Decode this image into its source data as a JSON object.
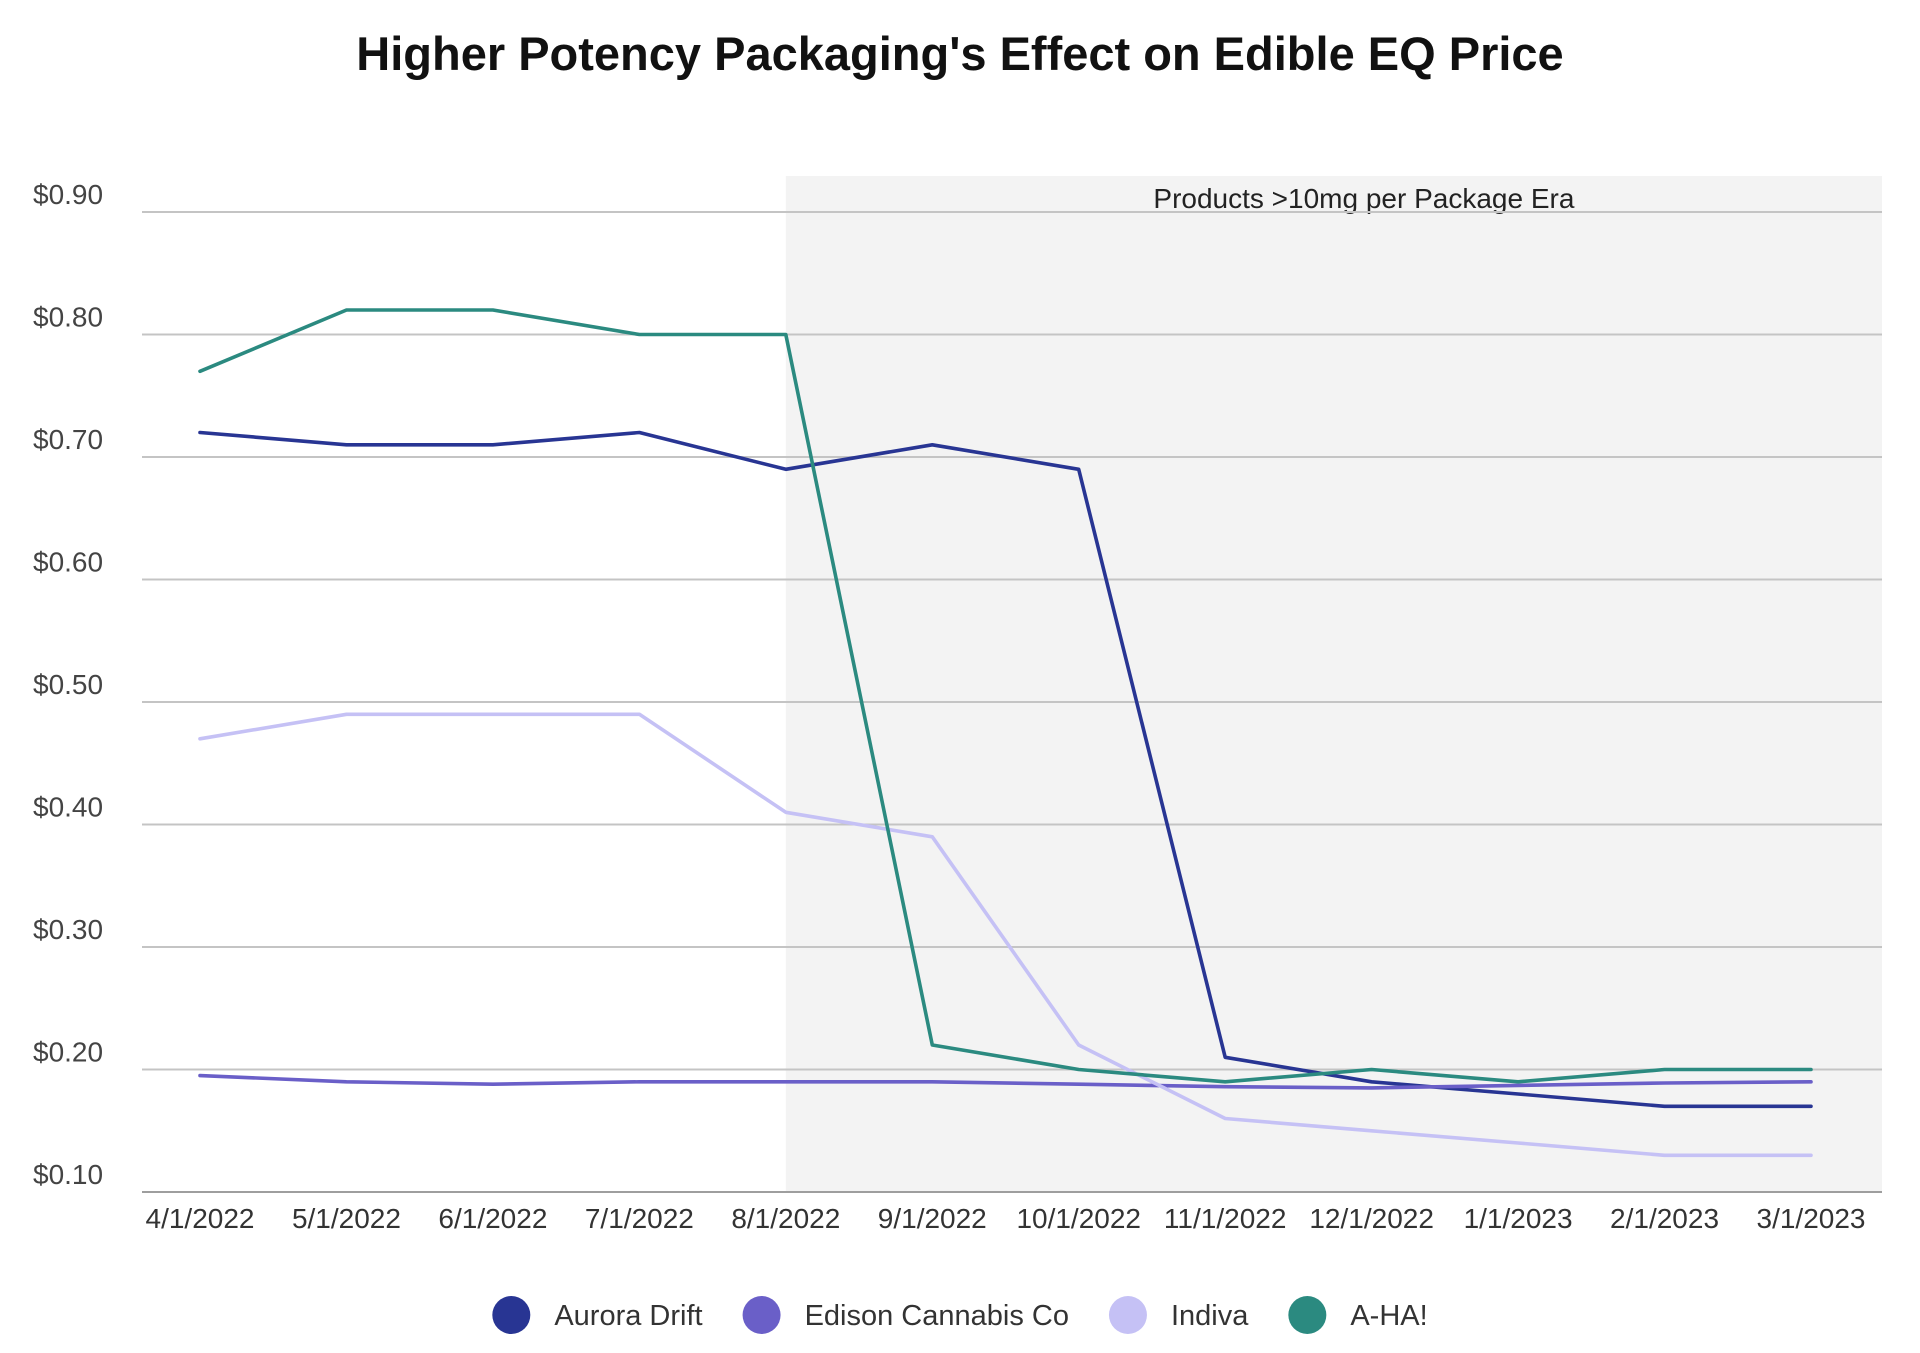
{
  "chart_data": {
    "type": "line",
    "title": "Higher Potency Packaging's Effect on Edible EQ Price",
    "xlabel": "",
    "ylabel": "",
    "categories": [
      "4/1/2022",
      "5/1/2022",
      "6/1/2022",
      "7/1/2022",
      "8/1/2022",
      "9/1/2022",
      "10/1/2022",
      "11/1/2022",
      "12/1/2022",
      "1/1/2023",
      "2/1/2023",
      "3/1/2023"
    ],
    "ylim": [
      0.1,
      0.9
    ],
    "yticks": [
      {
        "value": 0.9,
        "label": "$0.90"
      },
      {
        "value": 0.8,
        "label": "$0.80"
      },
      {
        "value": 0.7,
        "label": "$0.70"
      },
      {
        "value": 0.6,
        "label": "$0.60"
      },
      {
        "value": 0.5,
        "label": "$0.50"
      },
      {
        "value": 0.4,
        "label": "$0.40"
      },
      {
        "value": 0.3,
        "label": "$0.30"
      },
      {
        "value": 0.2,
        "label": "$0.20"
      },
      {
        "value": 0.1,
        "label": "$0.10"
      }
    ],
    "grid": true,
    "legend_position": "bottom",
    "shaded_region": {
      "label": "Products >10mg per Package Era",
      "from_category": "8/1/2022",
      "to_category": "3/1/2023",
      "color": "#f3f3f3"
    },
    "series": [
      {
        "name": "Aurora Drift",
        "color": "#283593",
        "values": [
          0.72,
          0.71,
          0.71,
          0.72,
          0.69,
          0.71,
          0.69,
          0.21,
          0.19,
          0.18,
          0.17,
          0.17
        ]
      },
      {
        "name": "Edison Cannabis Co",
        "color": "#6a5fc8",
        "values": [
          0.195,
          0.19,
          0.188,
          0.19,
          0.19,
          0.19,
          0.188,
          0.186,
          0.185,
          0.187,
          0.189,
          0.19
        ]
      },
      {
        "name": "Indiva",
        "color": "#c5c1f5",
        "values": [
          0.47,
          0.49,
          0.49,
          0.49,
          0.41,
          0.39,
          0.22,
          0.16,
          0.15,
          0.14,
          0.13,
          0.13
        ]
      },
      {
        "name": "A-HA!",
        "color": "#2b8a80",
        "values": [
          0.77,
          0.82,
          0.82,
          0.8,
          0.8,
          0.22,
          0.2,
          0.19,
          0.2,
          0.19,
          0.2,
          0.2
        ]
      }
    ]
  }
}
